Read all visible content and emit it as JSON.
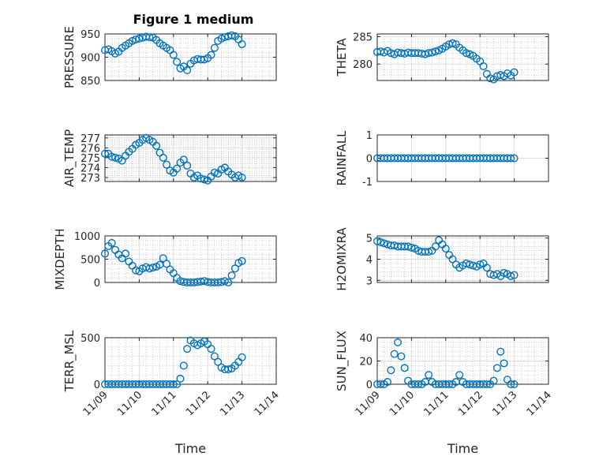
{
  "figure_title": "Figure 1 medium",
  "x_tick_labels": [
    "11/09",
    "11/10",
    "11/11",
    "11/12",
    "11/13",
    "11/14"
  ],
  "colors": {
    "marker": "#0072bd",
    "axes": "#262626",
    "grid_major": "#dcdcdc",
    "grid_minor": "#bbbbbb",
    "background": "#ffffff"
  },
  "chart_data": [
    {
      "type": "scatter",
      "ylabel": "PRESSURE",
      "title": "Figure 1 medium",
      "xlabel": "",
      "xlim": [
        0,
        5
      ],
      "ylim": [
        850,
        950
      ],
      "yticks": [
        850,
        900,
        950
      ],
      "yticklabels": [
        "850",
        "900",
        "950"
      ],
      "grid": "major+minor",
      "marker": "open circle",
      "x": [
        0,
        0.1,
        0.2,
        0.3,
        0.4,
        0.5,
        0.6,
        0.7,
        0.8,
        0.9,
        1.0,
        1.1,
        1.2,
        1.3,
        1.4,
        1.5,
        1.6,
        1.7,
        1.8,
        1.9,
        2.0,
        2.1,
        2.2,
        2.3,
        2.4,
        2.5,
        2.6,
        2.7,
        2.8,
        2.9,
        3.0,
        3.1,
        3.2,
        3.3,
        3.4,
        3.5,
        3.6,
        3.7,
        3.8,
        3.9,
        4.0
      ],
      "y": [
        915,
        917,
        913,
        908,
        912,
        920,
        925,
        930,
        935,
        938,
        940,
        942,
        944,
        943,
        942,
        937,
        930,
        925,
        920,
        915,
        905,
        890,
        876,
        880,
        872,
        886,
        893,
        896,
        895,
        895,
        898,
        905,
        920,
        935,
        940,
        943,
        945,
        947,
        945,
        938,
        928
      ]
    },
    {
      "type": "scatter",
      "ylabel": "THETA",
      "title": "",
      "xlabel": "",
      "xlim": [
        0,
        5
      ],
      "ylim": [
        277,
        285.5
      ],
      "yticks": [
        280,
        285
      ],
      "yticklabels": [
        "280",
        "285"
      ],
      "grid": "major+minor",
      "marker": "open circle",
      "x": [
        0,
        0.1,
        0.2,
        0.3,
        0.4,
        0.5,
        0.6,
        0.7,
        0.8,
        0.9,
        1.0,
        1.1,
        1.2,
        1.3,
        1.4,
        1.5,
        1.6,
        1.7,
        1.8,
        1.9,
        2.0,
        2.1,
        2.2,
        2.3,
        2.4,
        2.5,
        2.6,
        2.7,
        2.8,
        2.9,
        3.0,
        3.1,
        3.2,
        3.3,
        3.4,
        3.5,
        3.6,
        3.7,
        3.8,
        3.9,
        4.0
      ],
      "y": [
        282.2,
        282.3,
        282.1,
        282.4,
        282.0,
        281.8,
        282.1,
        282.0,
        281.9,
        282.1,
        282.0,
        282.0,
        282.0,
        281.9,
        281.8,
        282.0,
        282.1,
        282.3,
        282.5,
        282.8,
        283.2,
        283.6,
        283.8,
        283.6,
        283.0,
        282.5,
        282.0,
        281.8,
        281.5,
        281.0,
        280.5,
        279.6,
        278.2,
        277.4,
        277.2,
        277.8,
        278.0,
        277.8,
        278.3,
        277.9,
        278.5
      ]
    },
    {
      "type": "scatter",
      "ylabel": "AIR_TEMP",
      "title": "",
      "xlabel": "",
      "xlim": [
        0,
        5
      ],
      "ylim": [
        272.6,
        277.3
      ],
      "yticks": [
        273,
        274,
        275,
        276,
        277
      ],
      "yticklabels": [
        "273",
        "274",
        "275",
        "276",
        "277"
      ],
      "grid": "major+minor",
      "marker": "open circle",
      "x": [
        0,
        0.1,
        0.2,
        0.3,
        0.4,
        0.5,
        0.6,
        0.7,
        0.8,
        0.9,
        1.0,
        1.1,
        1.2,
        1.3,
        1.4,
        1.5,
        1.6,
        1.7,
        1.8,
        1.9,
        2.0,
        2.1,
        2.2,
        2.3,
        2.4,
        2.5,
        2.6,
        2.7,
        2.8,
        2.9,
        3.0,
        3.1,
        3.2,
        3.3,
        3.4,
        3.5,
        3.6,
        3.7,
        3.8,
        3.9,
        4.0
      ],
      "y": [
        275.4,
        275.4,
        275.1,
        275.0,
        274.9,
        274.7,
        275.2,
        275.6,
        275.9,
        276.3,
        276.5,
        276.8,
        277.0,
        276.8,
        276.6,
        276.2,
        275.5,
        275.0,
        274.3,
        273.7,
        273.5,
        273.9,
        274.5,
        274.8,
        274.2,
        273.4,
        273.0,
        273.2,
        272.9,
        272.8,
        272.7,
        273.1,
        273.5,
        273.4,
        273.8,
        274.0,
        273.6,
        273.3,
        273.0,
        273.2,
        273.0
      ]
    },
    {
      "type": "scatter",
      "ylabel": "RAINFALL",
      "title": "",
      "xlabel": "",
      "xlim": [
        0,
        5
      ],
      "ylim": [
        -1,
        1
      ],
      "yticks": [
        -1,
        0,
        1
      ],
      "yticklabels": [
        "-1",
        "0",
        "1"
      ],
      "grid": "major",
      "marker": "open circle",
      "x": [
        0,
        0.1,
        0.2,
        0.3,
        0.4,
        0.5,
        0.6,
        0.7,
        0.8,
        0.9,
        1.0,
        1.1,
        1.2,
        1.3,
        1.4,
        1.5,
        1.6,
        1.7,
        1.8,
        1.9,
        2.0,
        2.1,
        2.2,
        2.3,
        2.4,
        2.5,
        2.6,
        2.7,
        2.8,
        2.9,
        3.0,
        3.1,
        3.2,
        3.3,
        3.4,
        3.5,
        3.6,
        3.7,
        3.8,
        3.9,
        4.0
      ],
      "y": [
        0,
        0,
        0,
        0,
        0,
        0,
        0,
        0,
        0,
        0,
        0,
        0,
        0,
        0,
        0,
        0,
        0,
        0,
        0,
        0,
        0,
        0,
        0,
        0,
        0,
        0,
        0,
        0,
        0,
        0,
        0,
        0,
        0,
        0,
        0,
        0,
        0,
        0,
        0,
        0,
        0
      ]
    },
    {
      "type": "scatter",
      "ylabel": "MIXDEPTH",
      "title": "",
      "xlabel": "",
      "xlim": [
        0,
        5
      ],
      "ylim": [
        0,
        1000
      ],
      "yticks": [
        0,
        500,
        1000
      ],
      "yticklabels": [
        "0",
        "500",
        "1000"
      ],
      "grid": "major+minor",
      "marker": "open circle",
      "x": [
        0,
        0.1,
        0.2,
        0.3,
        0.4,
        0.5,
        0.6,
        0.7,
        0.8,
        0.9,
        1.0,
        1.1,
        1.2,
        1.3,
        1.4,
        1.5,
        1.6,
        1.7,
        1.8,
        1.9,
        2.0,
        2.1,
        2.2,
        2.3,
        2.4,
        2.5,
        2.6,
        2.7,
        2.8,
        2.9,
        3.0,
        3.1,
        3.2,
        3.3,
        3.4,
        3.5,
        3.6,
        3.7,
        3.8,
        3.9,
        4.0
      ],
      "y": [
        620,
        780,
        850,
        700,
        600,
        520,
        620,
        450,
        360,
        260,
        240,
        300,
        330,
        300,
        320,
        340,
        380,
        520,
        400,
        280,
        200,
        100,
        30,
        10,
        0,
        0,
        0,
        10,
        20,
        30,
        10,
        0,
        0,
        0,
        10,
        30,
        0,
        150,
        300,
        420,
        460
      ]
    },
    {
      "type": "scatter",
      "ylabel": "H2OMIXRA",
      "title": "",
      "xlabel": "",
      "xlim": [
        0,
        5
      ],
      "ylim": [
        2.9,
        5.1
      ],
      "yticks": [
        3,
        4,
        5
      ],
      "yticklabels": [
        "3",
        "4",
        "5"
      ],
      "grid": "major+minor",
      "marker": "open circle",
      "x": [
        0,
        0.1,
        0.2,
        0.3,
        0.4,
        0.5,
        0.6,
        0.7,
        0.8,
        0.9,
        1.0,
        1.1,
        1.2,
        1.3,
        1.4,
        1.5,
        1.6,
        1.7,
        1.8,
        1.9,
        2.0,
        2.1,
        2.2,
        2.3,
        2.4,
        2.5,
        2.6,
        2.7,
        2.8,
        2.9,
        3.0,
        3.1,
        3.2,
        3.3,
        3.4,
        3.5,
        3.6,
        3.7,
        3.8,
        3.9,
        4.0
      ],
      "y": [
        4.85,
        4.8,
        4.75,
        4.7,
        4.65,
        4.65,
        4.6,
        4.6,
        4.6,
        4.6,
        4.55,
        4.5,
        4.4,
        4.35,
        4.35,
        4.35,
        4.4,
        4.6,
        4.9,
        4.7,
        4.5,
        4.2,
        4.0,
        3.75,
        3.6,
        3.7,
        3.8,
        3.75,
        3.7,
        3.65,
        3.75,
        3.8,
        3.6,
        3.3,
        3.25,
        3.3,
        3.2,
        3.35,
        3.3,
        3.2,
        3.25
      ]
    },
    {
      "type": "scatter",
      "ylabel": "TERR_MSL",
      "title": "",
      "xlabel": "Time",
      "xlim": [
        0,
        5
      ],
      "ylim": [
        0,
        500
      ],
      "yticks": [
        0,
        500
      ],
      "yticklabels": [
        "0",
        "500"
      ],
      "grid": "major+minor",
      "marker": "open circle",
      "x": [
        0,
        0.1,
        0.2,
        0.3,
        0.4,
        0.5,
        0.6,
        0.7,
        0.8,
        0.9,
        1.0,
        1.1,
        1.2,
        1.3,
        1.4,
        1.5,
        1.6,
        1.7,
        1.8,
        1.9,
        2.0,
        2.1,
        2.2,
        2.3,
        2.4,
        2.5,
        2.6,
        2.7,
        2.8,
        2.9,
        3.0,
        3.1,
        3.2,
        3.3,
        3.4,
        3.5,
        3.6,
        3.7,
        3.8,
        3.9,
        4.0
      ],
      "y": [
        0,
        0,
        0,
        0,
        0,
        0,
        0,
        0,
        0,
        0,
        0,
        0,
        0,
        0,
        0,
        0,
        0,
        0,
        0,
        0,
        0,
        0,
        60,
        200,
        380,
        470,
        440,
        420,
        440,
        460,
        430,
        380,
        300,
        240,
        180,
        160,
        160,
        170,
        200,
        240,
        290
      ]
    },
    {
      "type": "scatter",
      "ylabel": "SUN_FLUX",
      "title": "",
      "xlabel": "Time",
      "xlim": [
        0,
        5
      ],
      "ylim": [
        0,
        40
      ],
      "yticks": [
        0,
        20,
        40
      ],
      "yticklabels": [
        "0",
        "20",
        "40"
      ],
      "grid": "major+minor",
      "marker": "open circle",
      "x": [
        0,
        0.1,
        0.2,
        0.3,
        0.4,
        0.5,
        0.6,
        0.7,
        0.8,
        0.9,
        1.0,
        1.1,
        1.2,
        1.3,
        1.4,
        1.5,
        1.6,
        1.7,
        1.8,
        1.9,
        2.0,
        2.1,
        2.2,
        2.3,
        2.4,
        2.5,
        2.6,
        2.7,
        2.8,
        2.9,
        3.0,
        3.1,
        3.2,
        3.3,
        3.4,
        3.5,
        3.6,
        3.7,
        3.8,
        3.9,
        4.0
      ],
      "y": [
        0,
        0,
        0,
        2,
        12,
        26,
        36,
        24,
        14,
        3,
        0,
        0,
        0,
        0,
        2,
        8,
        2,
        0,
        0,
        0,
        0,
        0,
        0,
        2,
        8,
        2,
        0,
        0,
        0,
        0,
        0,
        0,
        0,
        0,
        3,
        14,
        28,
        18,
        4,
        0,
        0
      ]
    }
  ]
}
